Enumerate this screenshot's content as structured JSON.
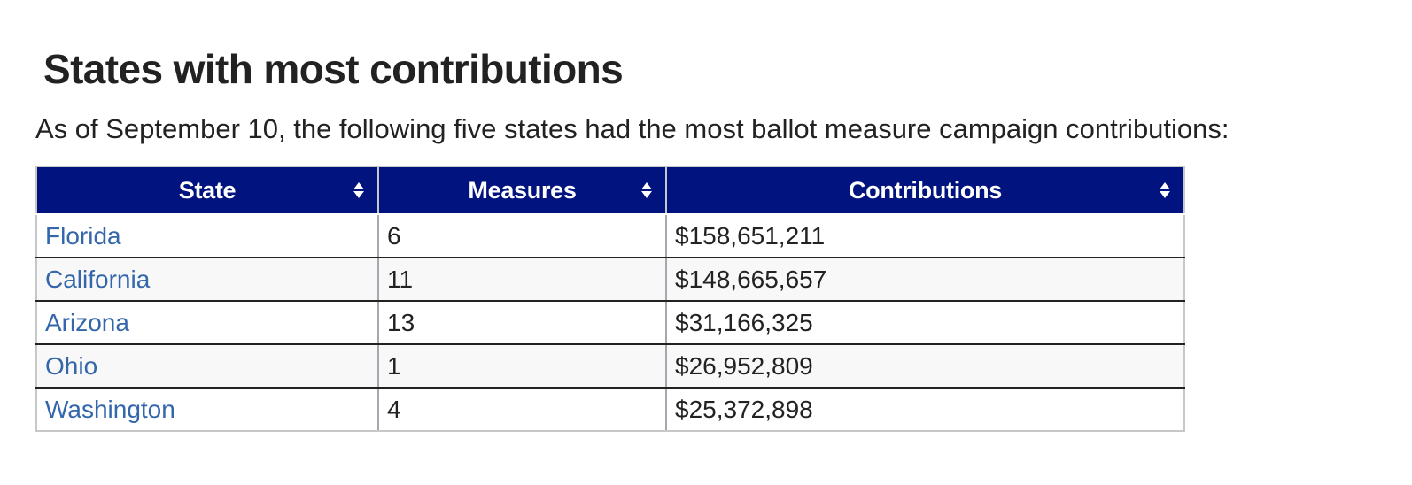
{
  "section": {
    "title": "States with most contributions",
    "intro": "As of September 10, the following five states had the most ballot measure campaign contributions:"
  },
  "table": {
    "columns": [
      "State",
      "Measures",
      "Contributions"
    ],
    "sort_icon": "sort-updown-icon",
    "rows": [
      {
        "state": "Florida",
        "measures": "6",
        "contributions": "$158,651,211"
      },
      {
        "state": "California",
        "measures": "11",
        "contributions": "$148,665,657"
      },
      {
        "state": "Arizona",
        "measures": "13",
        "contributions": "$31,166,325"
      },
      {
        "state": "Ohio",
        "measures": "1",
        "contributions": "$26,952,809"
      },
      {
        "state": "Washington",
        "measures": "4",
        "contributions": "$25,372,898"
      }
    ]
  },
  "colors": {
    "header_background": "#00137f",
    "header_text": "#ffffff",
    "link": "#3366aa",
    "text": "#222222",
    "stripe": "#f8f8f8"
  }
}
